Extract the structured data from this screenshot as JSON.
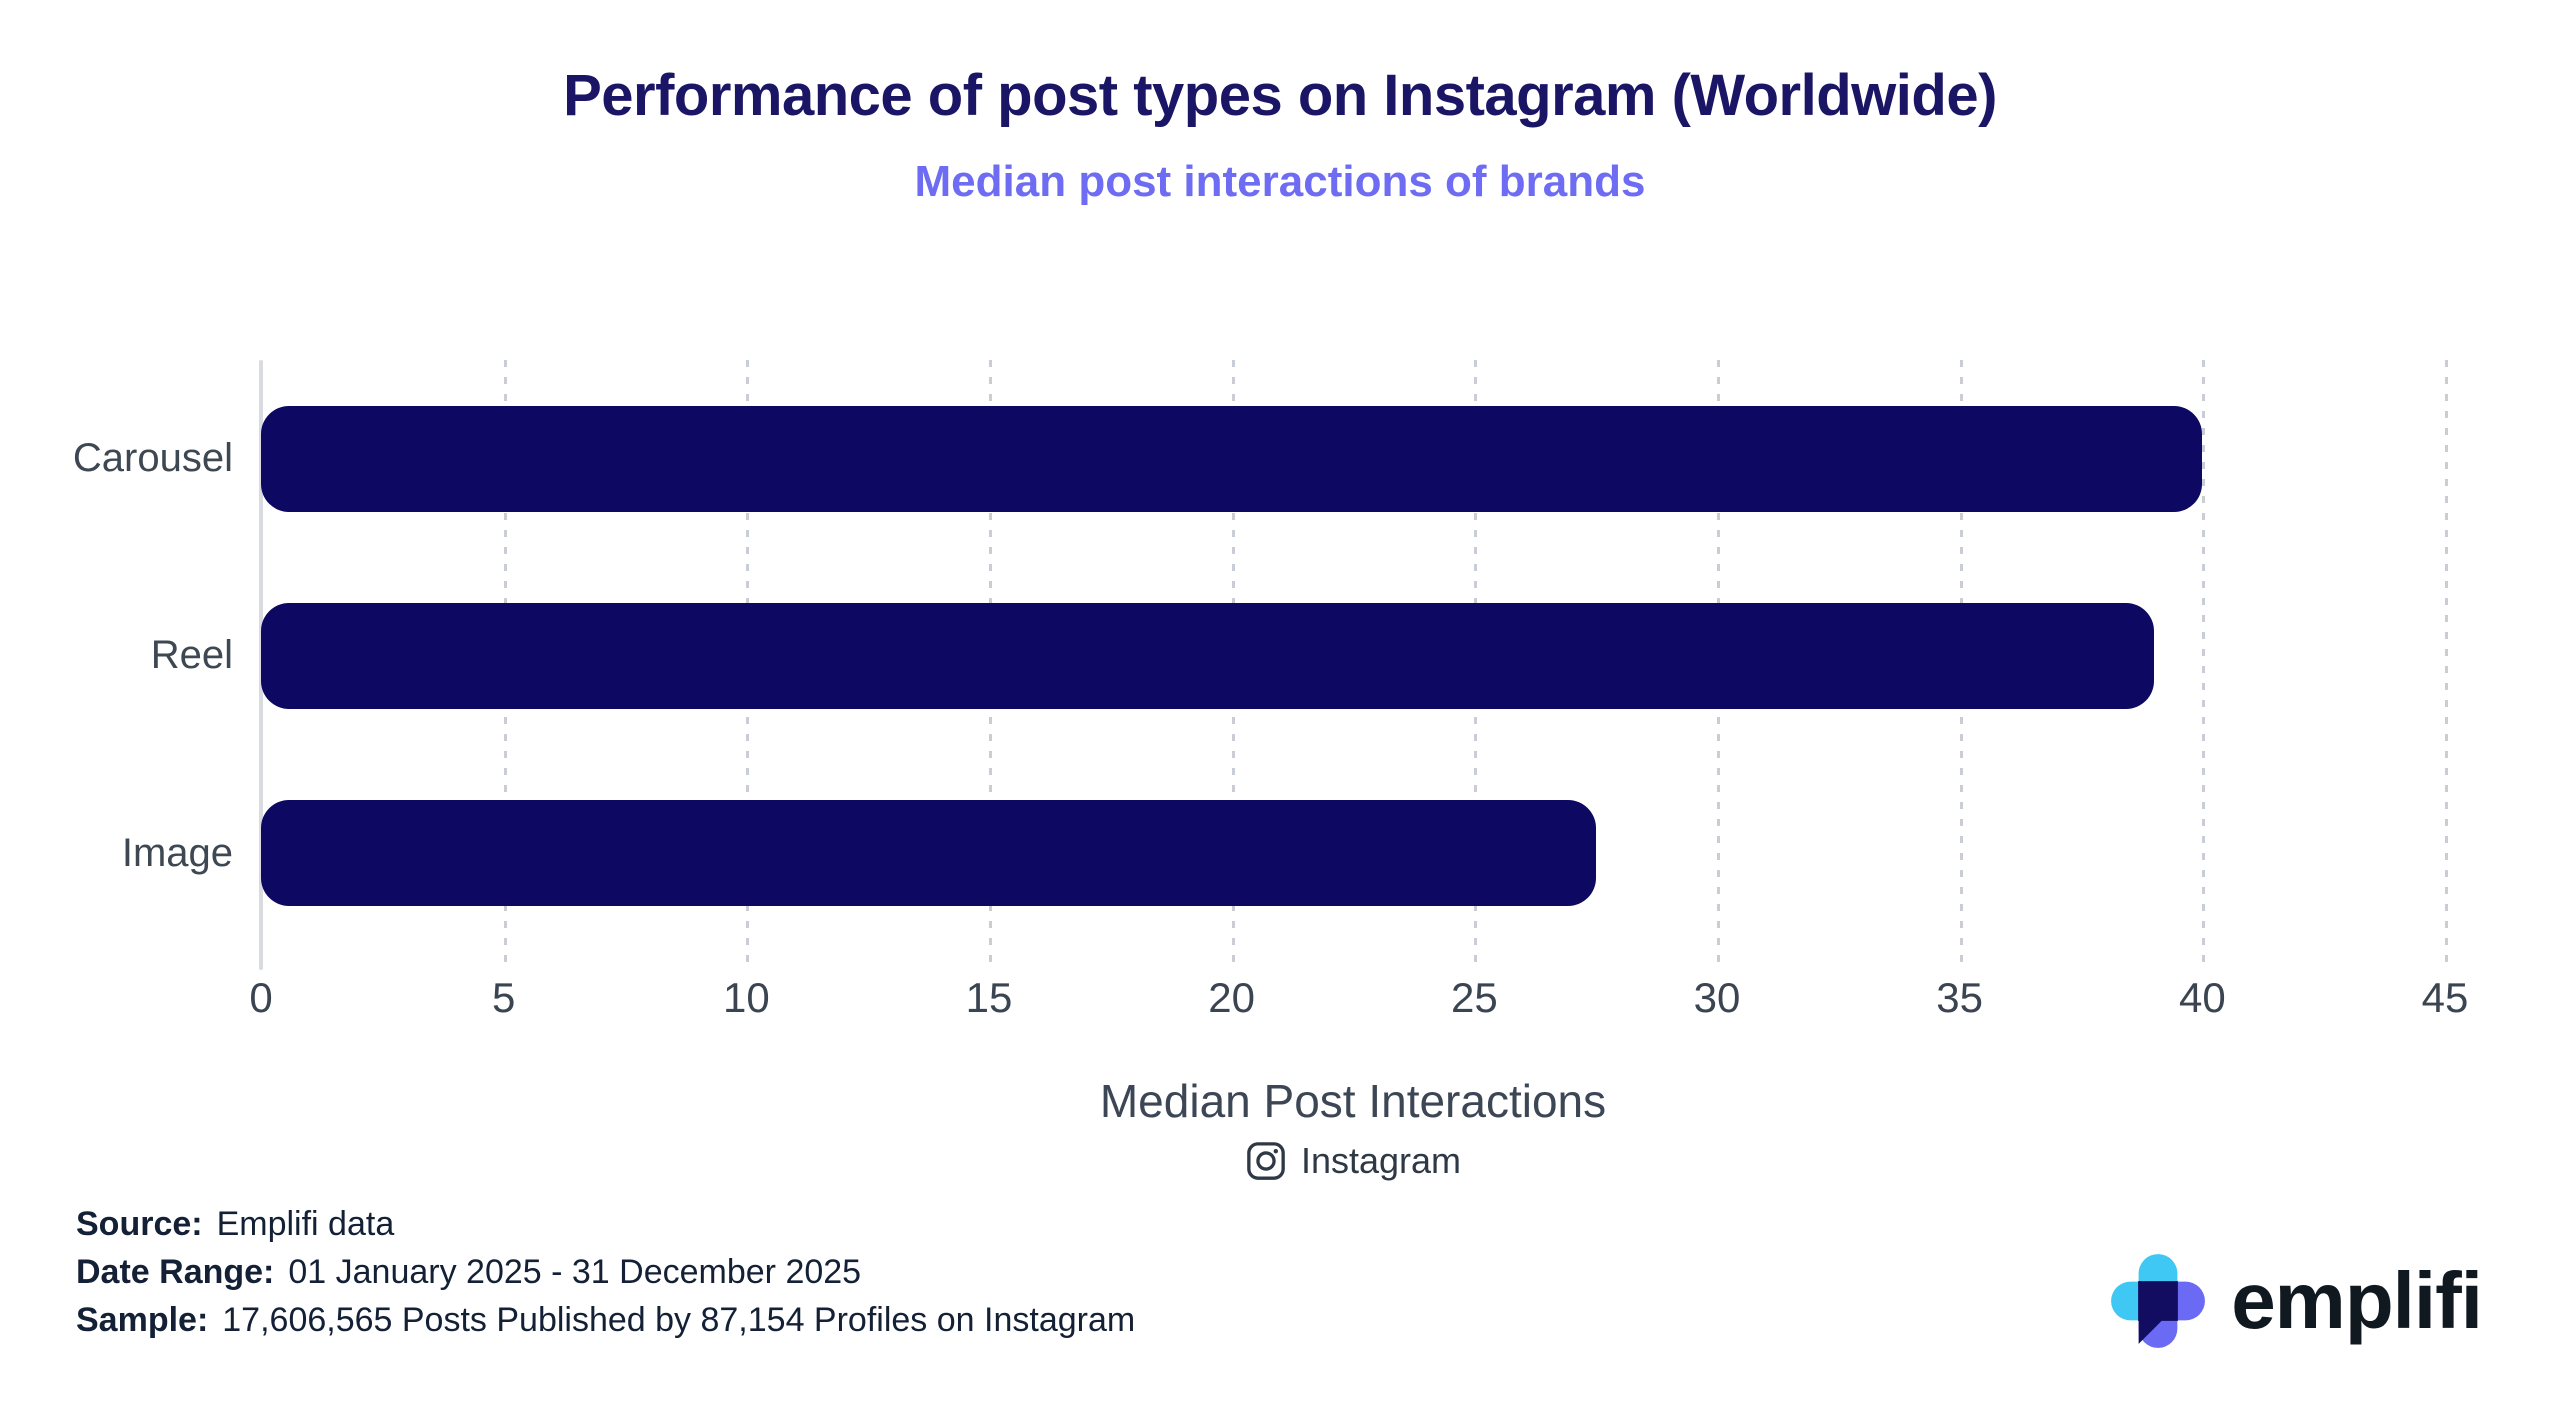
{
  "title": "Performance of post types on Instagram (Worldwide)",
  "subtitle": "Median post interactions of brands",
  "chart_data": {
    "type": "bar",
    "orientation": "horizontal",
    "title": "Performance of post types on Instagram (Worldwide)",
    "subtitle": "Median post interactions of brands",
    "categories": [
      "Carousel",
      "Reel",
      "Image"
    ],
    "values": [
      40,
      39,
      27.5
    ],
    "xlabel": "Median Post Interactions",
    "xlim": [
      0,
      45
    ],
    "xticks": [
      0,
      5,
      10,
      15,
      20,
      25,
      30,
      35,
      40,
      45
    ],
    "grid": "dotted-vertical",
    "legend": "none",
    "network_icon": "instagram-icon",
    "network_label": "Instagram",
    "bar_color": "#0D0861"
  },
  "footer": {
    "source_label": "Source:",
    "source_value": "Emplifi data",
    "date_label": "Date Range:",
    "date_value": "01 January 2025 - 31 December 2025",
    "sample_label": "Sample:",
    "sample_value": "17,606,565 Posts Published by 87,154 Profiles on Instagram"
  },
  "branding": {
    "logo_text": "emplifi"
  },
  "colors": {
    "title": "#1B1566",
    "subtitle": "#6D6CF2",
    "bar": "#0D0861",
    "axis_text": "#3B4551",
    "gridline": "#C9CED6",
    "axis_line": "#D8DBE0",
    "footer_text": "#132035",
    "logo_cyan": "#3FC8F4",
    "logo_periwinkle": "#6A6AF4",
    "logo_navy": "#120D60"
  }
}
